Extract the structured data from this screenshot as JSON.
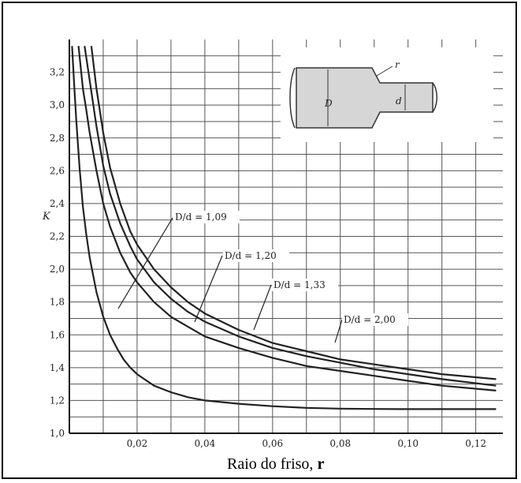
{
  "chart_data": {
    "type": "line",
    "title": "",
    "xlabel": "Raio do friso,",
    "xlabel_symbol": "r",
    "ylabel": "K",
    "xlim": [
      0.0,
      0.128
    ],
    "ylim": [
      1.0,
      3.4
    ],
    "x_ticks": [
      0.02,
      0.04,
      0.06,
      0.08,
      0.1,
      0.12
    ],
    "x_tick_labels": [
      "0,02",
      "0,04",
      "0,06",
      "0,08",
      "0,10",
      "0,12"
    ],
    "y_ticks": [
      1.0,
      1.2,
      1.4,
      1.6,
      1.8,
      2.0,
      2.2,
      2.4,
      2.6,
      2.8,
      3.0,
      3.2
    ],
    "y_tick_labels": [
      "1,0",
      "1,2",
      "1,4",
      "1,6",
      "1,8",
      "2,0",
      "2,2",
      "2,4",
      "2,6",
      "2,8",
      "3,0",
      "3,2"
    ],
    "grid": true,
    "series": [
      {
        "name": "D/d = 1,09",
        "label_ratio": "D/d = 1,09",
        "x": [
          0.0008,
          0.0015,
          0.002,
          0.003,
          0.004,
          0.005,
          0.006,
          0.008,
          0.01,
          0.012,
          0.014,
          0.016,
          0.018,
          0.02,
          0.025,
          0.03,
          0.035,
          0.04,
          0.05,
          0.06,
          0.07,
          0.08,
          0.09,
          0.1,
          0.11,
          0.126
        ],
        "y": [
          3.36,
          3.1,
          2.92,
          2.62,
          2.38,
          2.21,
          2.07,
          1.86,
          1.71,
          1.6,
          1.52,
          1.45,
          1.4,
          1.36,
          1.29,
          1.25,
          1.22,
          1.2,
          1.18,
          1.165,
          1.155,
          1.15,
          1.148,
          1.147,
          1.147,
          1.147
        ]
      },
      {
        "name": "D/d = 1,20",
        "label_ratio": "D/d = 1,20",
        "x": [
          0.0027,
          0.004,
          0.005,
          0.006,
          0.008,
          0.01,
          0.012,
          0.015,
          0.018,
          0.02,
          0.025,
          0.03,
          0.035,
          0.04,
          0.05,
          0.06,
          0.07,
          0.08,
          0.09,
          0.1,
          0.11,
          0.126
        ],
        "y": [
          3.36,
          3.1,
          2.97,
          2.83,
          2.6,
          2.4,
          2.26,
          2.1,
          1.98,
          1.92,
          1.8,
          1.71,
          1.65,
          1.59,
          1.52,
          1.46,
          1.41,
          1.38,
          1.35,
          1.32,
          1.29,
          1.26
        ]
      },
      {
        "name": "D/d = 1,33",
        "label_ratio": "D/d = 1,33",
        "x": [
          0.0045,
          0.006,
          0.008,
          0.01,
          0.012,
          0.015,
          0.018,
          0.02,
          0.025,
          0.03,
          0.035,
          0.04,
          0.05,
          0.06,
          0.07,
          0.08,
          0.09,
          0.1,
          0.11,
          0.126
        ],
        "y": [
          3.36,
          3.15,
          2.87,
          2.63,
          2.46,
          2.28,
          2.14,
          2.06,
          1.92,
          1.82,
          1.74,
          1.68,
          1.59,
          1.52,
          1.47,
          1.43,
          1.39,
          1.36,
          1.33,
          1.29
        ]
      },
      {
        "name": "D/d = 2,00",
        "label_ratio": "D/d = 2,00",
        "x": [
          0.0065,
          0.008,
          0.01,
          0.012,
          0.015,
          0.018,
          0.02,
          0.025,
          0.03,
          0.035,
          0.04,
          0.05,
          0.06,
          0.07,
          0.08,
          0.09,
          0.1,
          0.11,
          0.126
        ],
        "y": [
          3.36,
          3.1,
          2.83,
          2.62,
          2.4,
          2.23,
          2.15,
          2.0,
          1.89,
          1.8,
          1.73,
          1.63,
          1.55,
          1.5,
          1.45,
          1.42,
          1.39,
          1.36,
          1.33
        ]
      }
    ],
    "inset": {
      "labels": {
        "r": "r",
        "D": "D",
        "d": "d"
      }
    }
  }
}
